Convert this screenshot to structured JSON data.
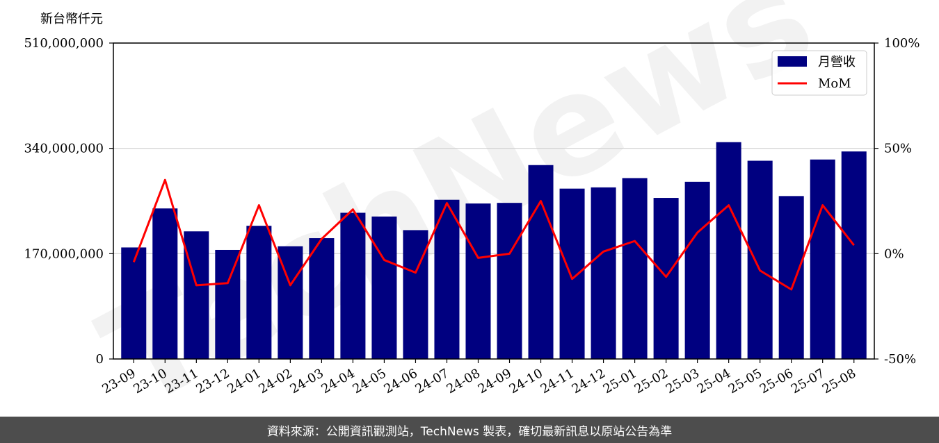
{
  "chart_data": {
    "type": "bar+line",
    "y_unit_label": "新台幣仟元",
    "categories": [
      "23-09",
      "23-10",
      "23-11",
      "23-12",
      "24-01",
      "24-02",
      "24-03",
      "24-04",
      "24-05",
      "24-06",
      "24-07",
      "24-08",
      "24-09",
      "24-10",
      "24-11",
      "24-12",
      "25-01",
      "25-02",
      "25-03",
      "25-04",
      "25-05",
      "25-06",
      "25-07",
      "25-08"
    ],
    "series": [
      {
        "name": "月營收",
        "type": "bar",
        "axis": "left",
        "color": "#000080",
        "values": [
          180000000,
          243000000,
          206000000,
          176000000,
          215000000,
          182000000,
          195000000,
          236000000,
          230000000,
          208000000,
          257000000,
          251000000,
          252000000,
          313000000,
          275000000,
          277000000,
          292000000,
          260000000,
          286000000,
          350000000,
          320000000,
          263000000,
          322000000,
          335000000
        ]
      },
      {
        "name": "MoM",
        "type": "line",
        "axis": "right",
        "color": "#ff0000",
        "values": [
          -4,
          35,
          -15,
          -14,
          23,
          -15,
          7,
          21,
          -3,
          -9,
          24,
          -2,
          0,
          25,
          -12,
          1,
          6,
          -11,
          10,
          23,
          -8,
          -17,
          23,
          4
        ]
      }
    ],
    "left_axis": {
      "ylim": [
        0,
        510000000
      ],
      "ticks": [
        "0",
        "170,000,000",
        "340,000,000",
        "510,000,000"
      ]
    },
    "right_axis": {
      "ylim": [
        -50,
        100
      ],
      "ticks": [
        "-50%",
        "0%",
        "50%",
        "100%"
      ]
    },
    "grid": "horizontal",
    "legend_position": "top-right",
    "watermark": "TechNews"
  },
  "footer": {
    "text": "資料來源：公開資訊觀測站，TechNews 製表，確切最新訊息以原站公告為準"
  }
}
